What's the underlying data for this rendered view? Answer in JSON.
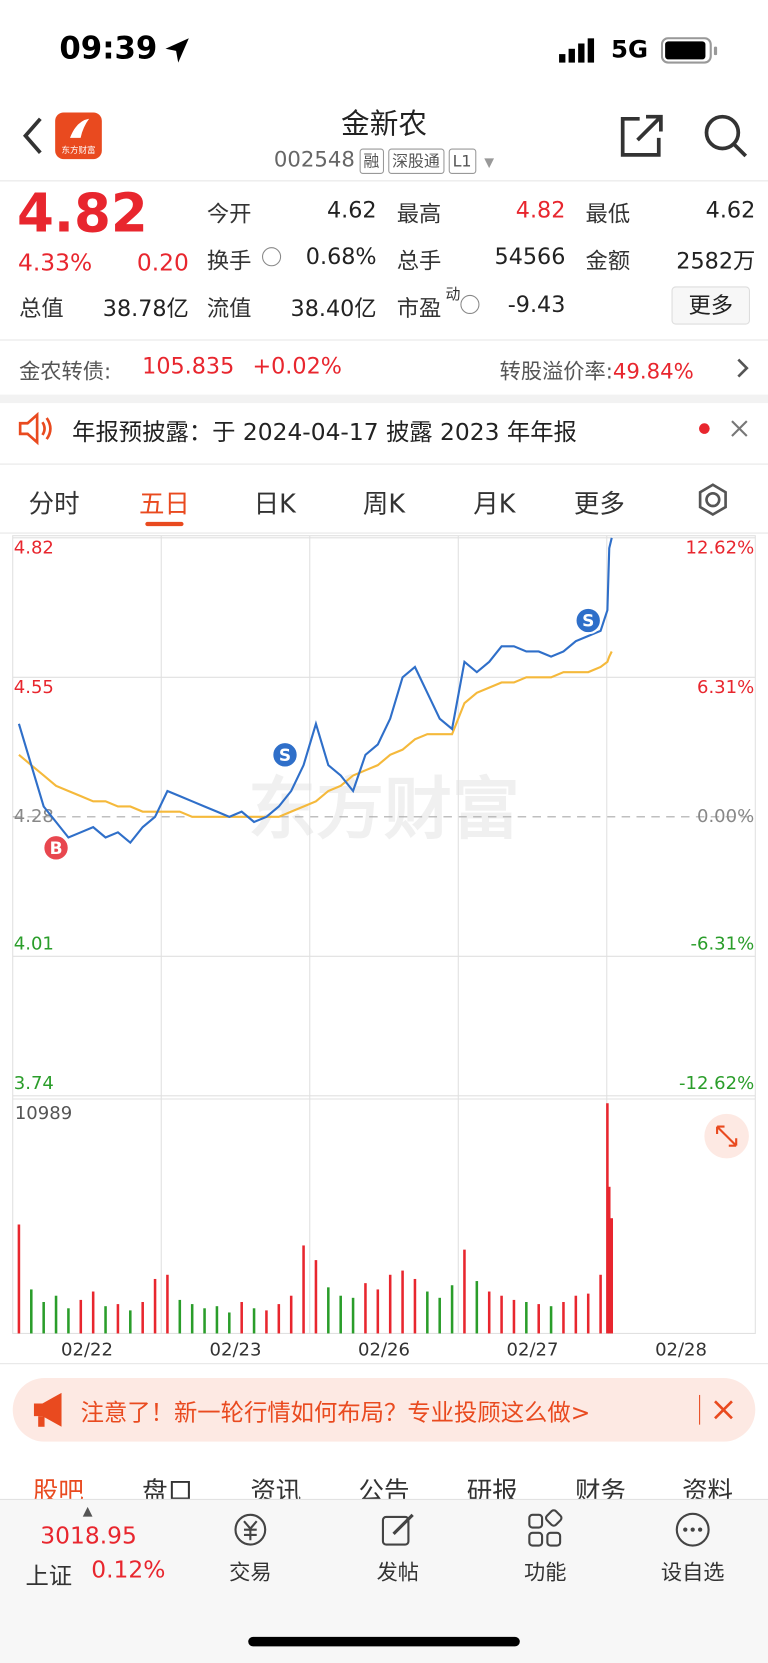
{
  "status": {
    "time": "09:39",
    "network": "5G"
  },
  "header": {
    "logo": "东方财富",
    "title": "金新农",
    "code": "002548",
    "tags": [
      "融",
      "深股通",
      "L1"
    ]
  },
  "quote": {
    "price": "4.82",
    "percent": "4.33%",
    "change": "0.20",
    "stats": [
      {
        "label": "今开",
        "value": "4.62"
      },
      {
        "label": "最高",
        "value": "4.82"
      },
      {
        "label": "最低",
        "value": "4.62"
      },
      {
        "label": "换手",
        "value": "0.68%"
      },
      {
        "label": "总手",
        "value": "54566"
      },
      {
        "label": "金额",
        "value": "2582万"
      },
      {
        "label": "总值",
        "value": "38.78亿"
      },
      {
        "label": "流值",
        "value": "38.40亿"
      },
      {
        "label": "市盈",
        "sup": "动",
        "value": "-9.43"
      }
    ],
    "more": "更多"
  },
  "bond": {
    "label": "金农转债:",
    "price": "105.835",
    "change": "+0.02%",
    "premium_label": "转股溢价率:",
    "premium": "49.84%"
  },
  "notice": {
    "text": "年报预披露：于 2024-04-17 披露 2023 年年报"
  },
  "tabs": {
    "items": [
      "分时",
      "五日",
      "日K",
      "周K",
      "月K",
      "更多"
    ],
    "active": 1
  },
  "chart_data": {
    "type": "line",
    "watermark": "东方财富",
    "xlim": [
      0,
      1200
    ],
    "xticks": [
      {
        "value": 120,
        "label": "02/22"
      },
      {
        "value": 360,
        "label": "02/23"
      },
      {
        "value": 600,
        "label": "02/26"
      },
      {
        "value": 840,
        "label": "02/27"
      },
      {
        "value": 1080,
        "label": "02/28"
      }
    ],
    "ylim": [
      3.74,
      4.82
    ],
    "yticks": [
      4.82,
      4.55,
      4.28,
      4.01,
      3.74
    ],
    "y2lim": [
      -12.62,
      12.62
    ],
    "y2ticks": [
      {
        "value": 12.62,
        "label": "12.62%"
      },
      {
        "value": 6.31,
        "label": "6.31%"
      },
      {
        "value": 0,
        "label": "0.00%"
      },
      {
        "value": -6.31,
        "label": "-6.31%"
      },
      {
        "value": -12.62,
        "label": "-12.62%"
      }
    ],
    "up_color": "#e8262e",
    "down_color": "#2a9d2a",
    "flat_color": "#888888",
    "x": [
      10,
      30,
      50,
      70,
      90,
      110,
      130,
      150,
      170,
      190,
      210,
      230,
      250,
      270,
      290,
      310,
      330,
      350,
      370,
      390,
      410,
      430,
      450,
      470,
      490,
      510,
      530,
      550,
      570,
      590,
      610,
      630,
      650,
      670,
      690,
      710,
      730,
      750,
      770,
      790,
      810,
      830,
      850,
      870,
      890,
      910,
      930,
      950,
      961,
      964,
      968
    ],
    "price": {
      "color": "#2f6fc9",
      "values": [
        4.46,
        4.38,
        4.3,
        4.27,
        4.24,
        4.25,
        4.26,
        4.24,
        4.25,
        4.23,
        4.26,
        4.28,
        4.33,
        4.32,
        4.31,
        4.3,
        4.29,
        4.28,
        4.29,
        4.27,
        4.28,
        4.3,
        4.33,
        4.38,
        4.46,
        4.38,
        4.36,
        4.33,
        4.4,
        4.42,
        4.47,
        4.55,
        4.57,
        4.52,
        4.47,
        4.45,
        4.58,
        4.56,
        4.58,
        4.61,
        4.61,
        4.6,
        4.6,
        4.59,
        4.6,
        4.62,
        4.63,
        4.64,
        4.68,
        4.8,
        4.82
      ]
    },
    "average": {
      "color": "#f5b93b",
      "values": [
        4.4,
        4.38,
        4.36,
        4.34,
        4.33,
        4.32,
        4.31,
        4.31,
        4.3,
        4.3,
        4.29,
        4.29,
        4.29,
        4.29,
        4.28,
        4.28,
        4.28,
        4.28,
        4.28,
        4.28,
        4.28,
        4.28,
        4.29,
        4.3,
        4.31,
        4.33,
        4.34,
        4.36,
        4.37,
        4.38,
        4.4,
        4.41,
        4.43,
        4.44,
        4.44,
        4.44,
        4.5,
        4.52,
        4.53,
        4.54,
        4.54,
        4.55,
        4.55,
        4.55,
        4.56,
        4.56,
        4.56,
        4.57,
        4.58,
        4.59,
        4.6
      ]
    },
    "volume": {
      "ylim": [
        0,
        10989
      ],
      "max_label": "10989",
      "values": [
        5200,
        2100,
        1500,
        1800,
        1200,
        1600,
        2000,
        1300,
        1400,
        1100,
        1500,
        2600,
        2800,
        1600,
        1400,
        1200,
        1300,
        1000,
        1500,
        1200,
        1100,
        1400,
        1800,
        4200,
        3500,
        2200,
        1800,
        1700,
        2400,
        2100,
        2800,
        3000,
        2600,
        2000,
        1700,
        2300,
        4000,
        2500,
        2000,
        1800,
        1600,
        1500,
        1400,
        1300,
        1500,
        1800,
        1900,
        2800,
        10989,
        7000,
        5500
      ]
    },
    "annotations": [
      {
        "text": "B",
        "x": 70,
        "y": 4.22,
        "color": "#e8474f"
      },
      {
        "text": "S",
        "x": 440,
        "y": 4.4,
        "color": "#2f6fc9"
      },
      {
        "text": "S",
        "x": 930,
        "y": 4.66,
        "color": "#2f6fc9"
      }
    ]
  },
  "ad": {
    "text": "注意了！新一轮行情如何布局？专业投顾这么做>"
  },
  "subtabs": [
    "股吧",
    "盘口",
    "资讯",
    "公告",
    "研报",
    "财务",
    "资料"
  ],
  "bottom": {
    "index_value": "3018.95",
    "index_name": "上证",
    "index_change": "0.12%",
    "items": [
      "交易",
      "发帖",
      "功能",
      "设自选"
    ]
  }
}
